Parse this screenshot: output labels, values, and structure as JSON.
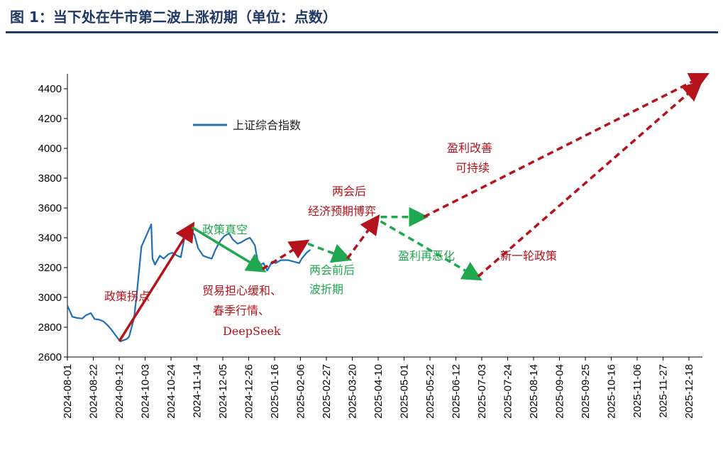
{
  "title": "图 1：当下处在牛市第二波上涨初期（单位：点数）",
  "colors": {
    "title": "#1f3864",
    "index_line": "#1f6fb4",
    "red_arrow": "#b5121b",
    "green_arrow": "#1fa84f",
    "red_text": "#b5121b",
    "green_text": "#1fa84f",
    "axis": "#000000"
  },
  "chart_data": {
    "type": "line",
    "xlabel": "",
    "ylabel": "",
    "ylim": [
      2600,
      4400
    ],
    "yticks": [
      2600,
      2800,
      3000,
      3200,
      3400,
      3600,
      3800,
      4000,
      4200,
      4400
    ],
    "x_ticks": [
      "2024-08-01",
      "2024-08-22",
      "2024-09-12",
      "2024-10-03",
      "2024-10-24",
      "2024-11-14",
      "2024-12-05",
      "2024-12-26",
      "2025-01-16",
      "2025-02-06",
      "2025-02-27",
      "2025-03-20",
      "2025-04-10",
      "2025-05-01",
      "2025-05-22",
      "2025-06-12",
      "2025-07-03",
      "2025-07-24",
      "2025-08-14",
      "2025-09-04",
      "2025-09-25",
      "2025-10-16",
      "2025-11-06",
      "2025-11-27",
      "2025-12-18"
    ],
    "legend": [
      "上证综合指数"
    ],
    "series": [
      {
        "name": "上证综合指数",
        "x": [
          "2024-08-01",
          "2024-08-05",
          "2024-08-09",
          "2024-08-13",
          "2024-08-16",
          "2024-08-20",
          "2024-08-23",
          "2024-08-27",
          "2024-08-30",
          "2024-09-03",
          "2024-09-06",
          "2024-09-10",
          "2024-09-13",
          "2024-09-18",
          "2024-09-20",
          "2024-09-24",
          "2024-09-26",
          "2024-09-30",
          "2024-10-08",
          "2024-10-09",
          "2024-10-11",
          "2024-10-15",
          "2024-10-18",
          "2024-10-22",
          "2024-10-25",
          "2024-10-29",
          "2024-11-01",
          "2024-11-05",
          "2024-11-08",
          "2024-11-12",
          "2024-11-15",
          "2024-11-19",
          "2024-11-22",
          "2024-11-26",
          "2024-11-29",
          "2024-12-03",
          "2024-12-06",
          "2024-12-10",
          "2024-12-13",
          "2024-12-17",
          "2024-12-20",
          "2024-12-24",
          "2024-12-27",
          "2024-12-31",
          "2025-01-03",
          "2025-01-07",
          "2025-01-10",
          "2025-01-14",
          "2025-01-17",
          "2025-01-21",
          "2025-01-24",
          "2025-01-27",
          "2025-02-05",
          "2025-02-07",
          "2025-02-11",
          "2025-02-14"
        ],
        "values": [
          2945,
          2870,
          2862,
          2858,
          2880,
          2895,
          2855,
          2850,
          2840,
          2810,
          2780,
          2735,
          2705,
          2720,
          2735,
          2860,
          3000,
          3340,
          3490,
          3260,
          3220,
          3280,
          3260,
          3290,
          3300,
          3280,
          3270,
          3450,
          3460,
          3420,
          3330,
          3280,
          3270,
          3260,
          3320,
          3380,
          3410,
          3430,
          3390,
          3360,
          3370,
          3390,
          3400,
          3350,
          3210,
          3230,
          3180,
          3240,
          3230,
          3250,
          3250,
          3250,
          3230,
          3260,
          3300,
          3320
        ]
      }
    ],
    "arrows": [
      {
        "color": "red",
        "style": "solid",
        "from": [
          "2024-09-12",
          2705
        ],
        "to": [
          "2024-11-10",
          3480
        ]
      },
      {
        "color": "green",
        "style": "solid",
        "from": [
          "2024-11-10",
          3470
        ],
        "to": [
          "2025-01-06",
          3185
        ]
      },
      {
        "color": "red",
        "style": "dashed",
        "from": [
          "2025-01-06",
          3190
        ],
        "to": [
          "2025-02-10",
          3370
        ]
      },
      {
        "color": "green",
        "style": "dashed",
        "from": [
          "2025-02-12",
          3360
        ],
        "to": [
          "2025-03-16",
          3260
        ]
      },
      {
        "color": "red",
        "style": "dashed",
        "from": [
          "2025-03-16",
          3260
        ],
        "to": [
          "2025-04-09",
          3530
        ]
      },
      {
        "color": "green",
        "style": "dashed",
        "from": [
          "2025-04-12",
          3540
        ],
        "to": [
          "2025-05-17",
          3540
        ]
      },
      {
        "color": "red",
        "style": "dashed",
        "from": [
          "2025-05-17",
          3540
        ],
        "to": [
          "2025-12-31",
          4490
        ]
      },
      {
        "color": "green",
        "style": "dashed",
        "from": [
          "2025-04-12",
          3510
        ],
        "to": [
          "2025-06-30",
          3130
        ]
      },
      {
        "color": "red",
        "style": "dashed",
        "from": [
          "2025-06-30",
          3140
        ],
        "to": [
          "2025-12-26",
          4430
        ]
      }
    ],
    "annotations": [
      {
        "text": "政策拐点",
        "color": "red"
      },
      {
        "text": "政策真空",
        "color": "green"
      },
      {
        "text": "贸易担心缓和、",
        "color": "red"
      },
      {
        "text": "春季行情、",
        "color": "red"
      },
      {
        "text": "DeepSeek",
        "color": "red"
      },
      {
        "text": "两会前后",
        "color": "green"
      },
      {
        "text": "波折期",
        "color": "green"
      },
      {
        "text": "两会后",
        "color": "red"
      },
      {
        "text": "经济预期博弈",
        "color": "red"
      },
      {
        "text": "盈利改善",
        "color": "red"
      },
      {
        "text": "可持续",
        "color": "red"
      },
      {
        "text": "盈利再恶化",
        "color": "green"
      },
      {
        "text": "新一轮政策",
        "color": "red"
      }
    ]
  }
}
